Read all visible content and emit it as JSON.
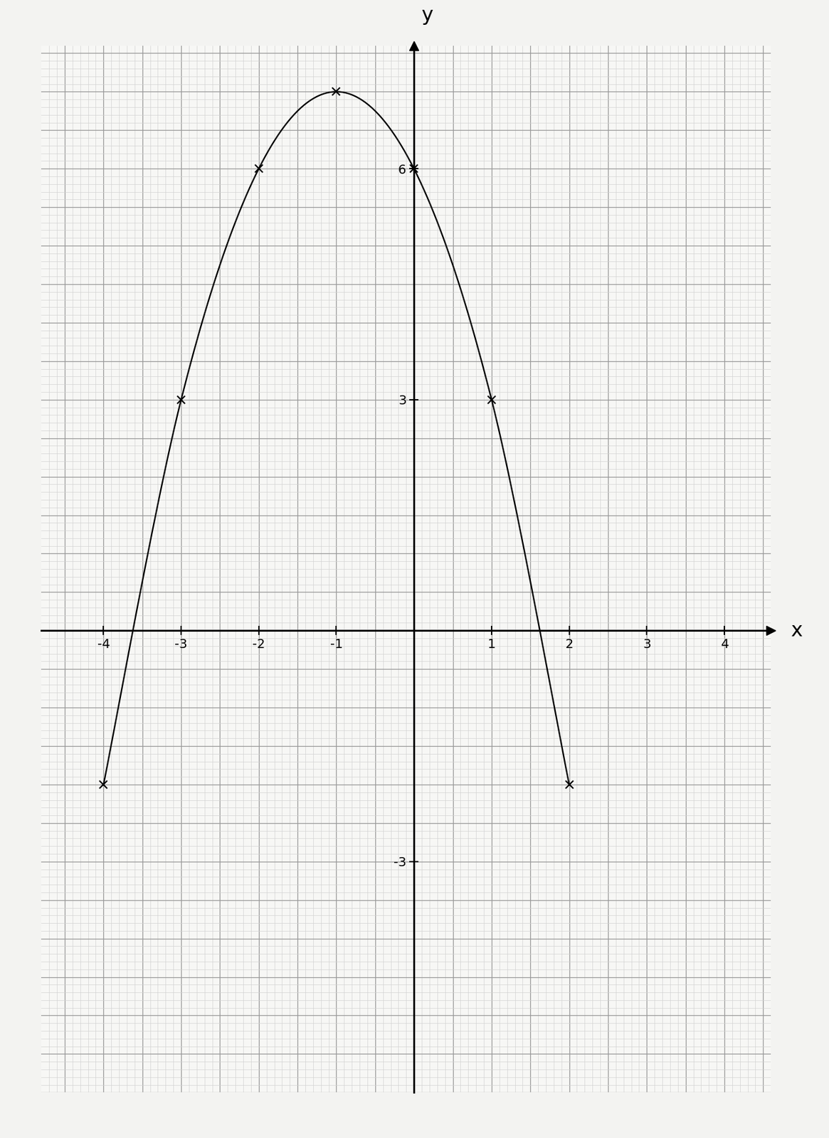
{
  "chart_data": {
    "type": "line",
    "x": [
      -4,
      -3,
      -2,
      -1,
      0,
      1,
      2
    ],
    "values": [
      -2,
      3,
      6,
      7,
      6,
      3,
      -2
    ],
    "color": "#000000",
    "marker": "x",
    "line_style": "solid",
    "x_label": "x",
    "y_label": "y",
    "xlim": [
      -4.8,
      4.6
    ],
    "ylim": [
      -6,
      7.6
    ],
    "xticks": [
      -4,
      -3,
      -2,
      -1,
      1,
      2,
      3,
      4
    ],
    "yticks": [
      -3,
      3,
      6
    ]
  }
}
